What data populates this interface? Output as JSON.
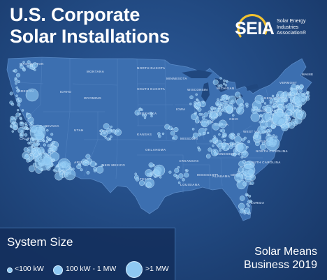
{
  "title": {
    "line1": "U.S. Corporate",
    "line2": "Solar Installations"
  },
  "logo": {
    "mark": "SEIA",
    "text_line1": "Solar Energy",
    "text_line2": "Industries",
    "text_line3": "Association®"
  },
  "legend": {
    "title": "System Size",
    "items": [
      {
        "label": "<100 kW"
      },
      {
        "label": "100 kW - 1 MW"
      },
      {
        "label": ">1 MW"
      }
    ]
  },
  "tagline": {
    "line1": "Solar Means",
    "line2": "Business 2019"
  },
  "states": [
    "WASHINGTON",
    "MONTANA",
    "NORTH DAKOTA",
    "MINNESOTA",
    "IDAHO",
    "SOUTH DAKOTA",
    "WYOMING",
    "WISCONSIN",
    "MICHIGAN",
    "IOWA",
    "NEBRASKA",
    "NEVADA",
    "UTAH",
    "COLORADO",
    "KANSAS",
    "MISSOURI",
    "ILLINOIS",
    "INDIANA",
    "OHIO",
    "PENNSYLVANIA",
    "NEW YORK",
    "WEST VIRGINIA",
    "VIRGINIA",
    "KENTUCKY",
    "TENNESSEE",
    "OKLAHOMA",
    "ARKANSAS",
    "NEW MEXICO",
    "ARIZONA",
    "TEXAS",
    "LOUISIANA",
    "MISSISSIPPI",
    "ALABAMA",
    "GEORGIA",
    "SOUTH CAROLINA",
    "NORTH CAROLINA",
    "MAINE",
    "VERMONT",
    "OREGON",
    "CALIFORNIA",
    "FLORIDA"
  ],
  "colors": {
    "background": "#20477e",
    "land": "#3c6fb0",
    "water": "#20477e",
    "bubble": "#8ec8f2",
    "bubble_stroke": "#d2ecff",
    "text": "#ffffff",
    "logo_ring": "#f2c230"
  }
}
